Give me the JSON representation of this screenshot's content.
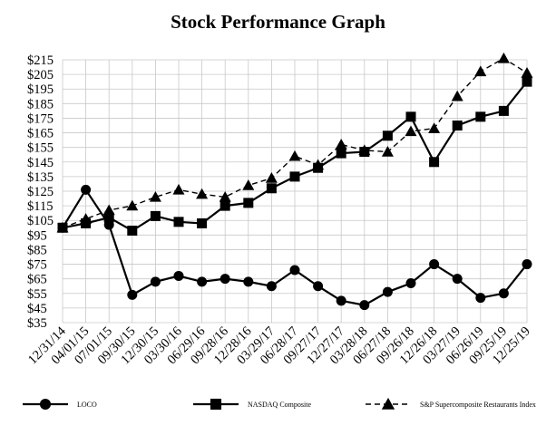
{
  "chart_data": {
    "type": "line",
    "title": "Stock Performance Graph",
    "xlabel": "",
    "ylabel": "",
    "categories": [
      "12/31/14",
      "04/01/15",
      "07/01/15",
      "09/30/15",
      "12/30/15",
      "03/30/16",
      "06/29/16",
      "09/28/16",
      "12/28/16",
      "03/29/17",
      "06/28/17",
      "09/27/17",
      "12/27/17",
      "03/28/18",
      "06/27/18",
      "09/26/18",
      "12/26/18",
      "03/27/19",
      "06/26/19",
      "09/25/19",
      "12/25/19"
    ],
    "y_ticks": [
      "$35",
      "$45",
      "$55",
      "$65",
      "$75",
      "$85",
      "$95",
      "$105",
      "$115",
      "$125",
      "$135",
      "$145",
      "$155",
      "$165",
      "$175",
      "$185",
      "$195",
      "$205",
      "$215"
    ],
    "ylim": [
      35,
      215
    ],
    "grid": true,
    "legend_position": "bottom",
    "series": [
      {
        "name": "LOCO",
        "marker": "circle",
        "dash": "solid",
        "values": [
          100,
          126,
          102,
          54,
          63,
          67,
          63,
          65,
          63,
          60,
          71,
          60,
          50,
          47,
          56,
          62,
          75,
          65,
          52,
          55,
          75
        ]
      },
      {
        "name": "NASDAQ Composite",
        "marker": "square",
        "dash": "solid",
        "values": [
          100,
          103,
          107,
          98,
          108,
          104,
          103,
          115,
          117,
          127,
          135,
          141,
          151,
          152,
          163,
          176,
          145,
          170,
          176,
          180,
          200
        ]
      },
      {
        "name": "S&P Supercomposite Restaurants Index",
        "marker": "triangle",
        "dash": "dashed",
        "values": [
          100,
          106,
          112,
          115,
          121,
          126,
          123,
          121,
          129,
          134,
          149,
          143,
          157,
          153,
          152,
          166,
          168,
          190,
          207,
          216,
          206
        ]
      }
    ]
  }
}
